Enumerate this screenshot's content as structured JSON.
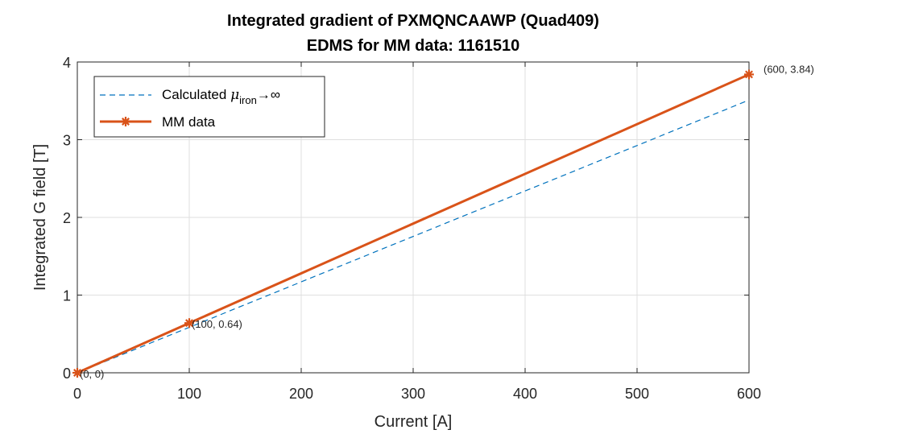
{
  "chart_data": {
    "type": "line",
    "title": [
      "Integrated gradient of PXMQNCAAWP (Quad409)",
      "EDMS for MM data: 1161510"
    ],
    "xlabel": "Current [A]",
    "ylabel": "Integrated G field [T]",
    "xlim": [
      0,
      600
    ],
    "ylim": [
      0,
      4
    ],
    "xticks": [
      "0",
      "100",
      "200",
      "300",
      "400",
      "500",
      "600"
    ],
    "yticks": [
      "0",
      "1",
      "2",
      "3",
      "4"
    ],
    "grid": true,
    "legend_position": "top-left",
    "series": [
      {
        "name": "Calculated μ_iron→∞",
        "legend": {
          "main": "Calculated ",
          "mu": "μ",
          "sub": "iron",
          "arrow": "→∞"
        },
        "style": "dashed",
        "color": "#0072BD",
        "x": [
          0,
          600
        ],
        "y": [
          0,
          3.51
        ]
      },
      {
        "name": "MM data",
        "style": "solid",
        "marker": "asterisk",
        "color": "#D95319",
        "x": [
          0,
          100,
          600
        ],
        "y": [
          0,
          0.64,
          3.84
        ]
      }
    ],
    "annotations": [
      {
        "text": "(0, 0)",
        "x": 0,
        "y": 0
      },
      {
        "text": "(100, 0.64)",
        "x": 100,
        "y": 0.64
      },
      {
        "text": "(600, 3.84)",
        "x": 600,
        "y": 3.84
      }
    ]
  }
}
